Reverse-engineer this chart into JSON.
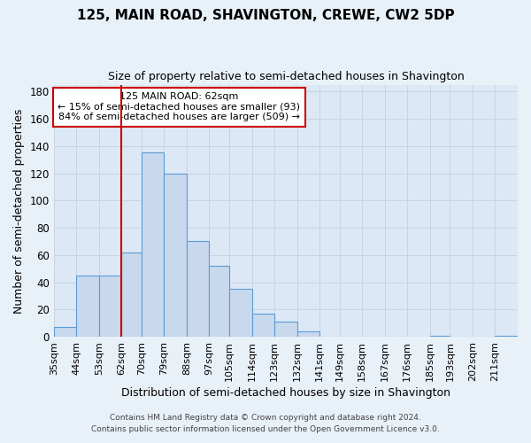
{
  "title": "125, MAIN ROAD, SHAVINGTON, CREWE, CW2 5DP",
  "subtitle": "Size of property relative to semi-detached houses in Shavington",
  "xlabel": "Distribution of semi-detached houses by size in Shavington",
  "ylabel": "Number of semi-detached properties",
  "footnote1": "Contains HM Land Registry data © Crown copyright and database right 2024.",
  "footnote2": "Contains public sector information licensed under the Open Government Licence v3.0.",
  "annotation_title": "125 MAIN ROAD: 62sqm",
  "annotation_line1": "← 15% of semi-detached houses are smaller (93)",
  "annotation_line2": "84% of semi-detached houses are larger (509) →",
  "bin_labels": [
    "35sqm",
    "44sqm",
    "53sqm",
    "62sqm",
    "70sqm",
    "79sqm",
    "88sqm",
    "97sqm",
    "105sqm",
    "114sqm",
    "123sqm",
    "132sqm",
    "141sqm",
    "149sqm",
    "158sqm",
    "167sqm",
    "176sqm",
    "185sqm",
    "193sqm",
    "202sqm",
    "211sqm"
  ],
  "bar_values": [
    7,
    45,
    45,
    62,
    135,
    120,
    70,
    52,
    35,
    17,
    11,
    4,
    0,
    0,
    0,
    0,
    0,
    1,
    0,
    0,
    1
  ],
  "bar_color": "#c9d9ed",
  "bar_edge_color": "#5b9bd5",
  "marker_x": 62,
  "marker_color": "#cc0000",
  "ylim": [
    0,
    185
  ],
  "yticks": [
    0,
    20,
    40,
    60,
    80,
    100,
    120,
    140,
    160,
    180
  ],
  "grid_color": "#c8d4e0",
  "background_color": "#e8f0f8",
  "plot_bg_color": "#dce8f5",
  "bin_starts": [
    35,
    44,
    53,
    62,
    70,
    79,
    88,
    97,
    105,
    114,
    123,
    132,
    141,
    149,
    158,
    167,
    176,
    185,
    193,
    202,
    211
  ],
  "xlim_left": 35,
  "xlim_right": 220
}
